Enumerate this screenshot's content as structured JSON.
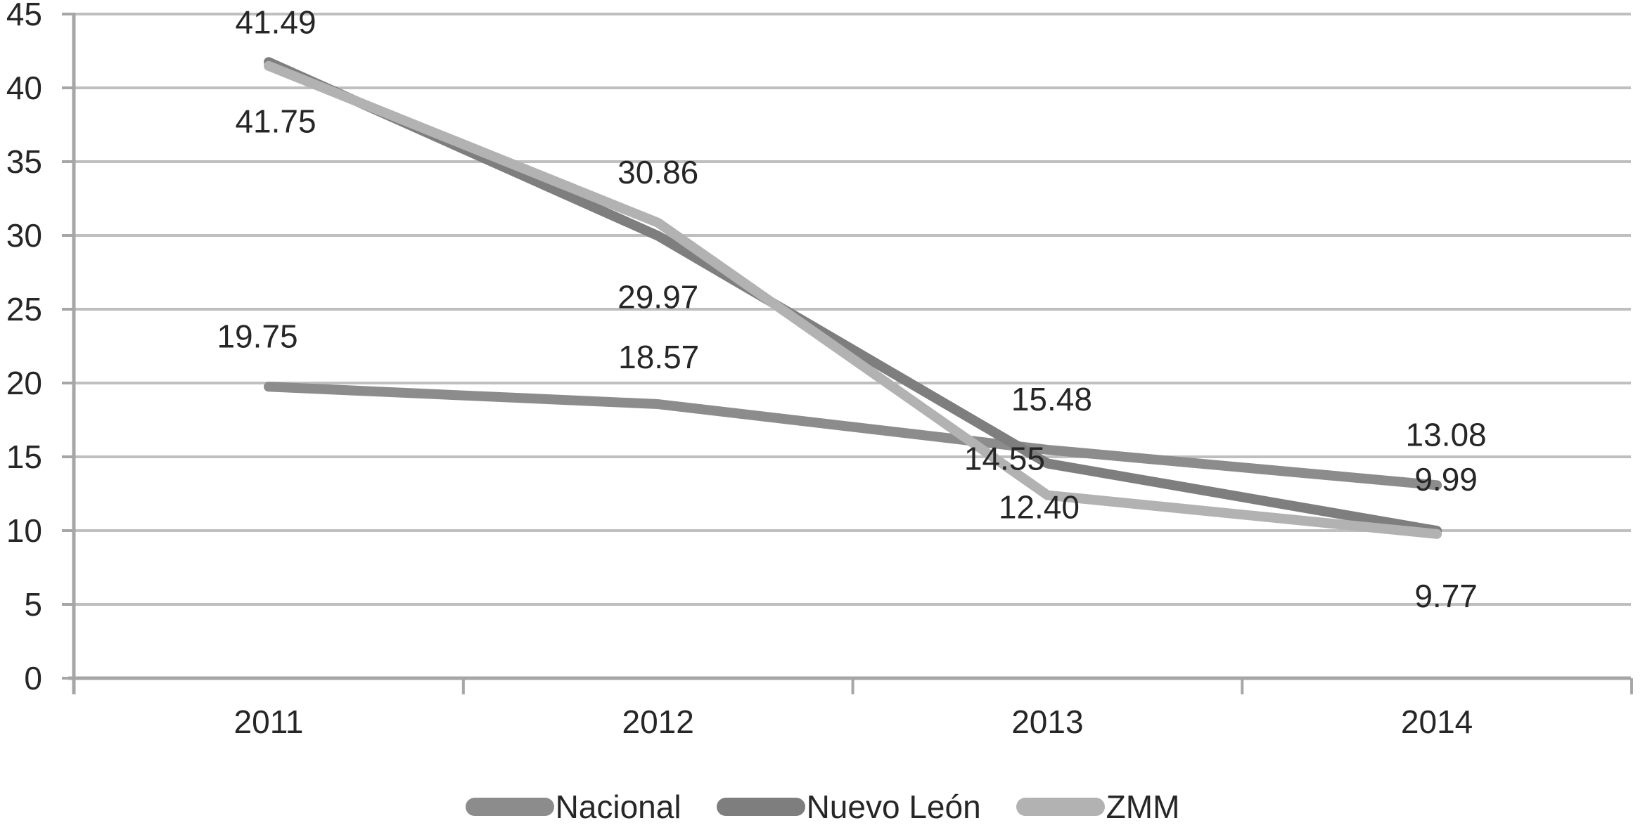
{
  "chart_data": {
    "type": "line",
    "x": [
      "2011",
      "2012",
      "2013",
      "2014"
    ],
    "series": [
      {
        "name": "Nacional",
        "values": [
          19.75,
          18.57,
          15.48,
          13.08
        ],
        "value_labels": [
          "19.75",
          "18.57",
          "15.48",
          "13.08"
        ],
        "color": "#8C8C8C",
        "label_offsets": [
          [
            -16,
            -72
          ],
          [
            1,
            -67
          ],
          [
            6,
            -72
          ],
          [
            13,
            -72
          ]
        ]
      },
      {
        "name": "Nuevo León",
        "values": [
          41.75,
          29.97,
          14.55,
          9.99
        ],
        "value_labels": [
          "41.75",
          "29.97",
          "14.55",
          "9.99"
        ],
        "color": "#7E7E7E",
        "label_offsets": [
          [
            10,
            84
          ],
          [
            0,
            87
          ],
          [
            -61,
            -7
          ],
          [
            13,
            -73
          ]
        ]
      },
      {
        "name": "ZMM",
        "values": [
          41.49,
          30.86,
          12.4,
          9.77
        ],
        "value_labels": [
          "41.49",
          "30.86",
          "12.40",
          "9.77"
        ],
        "color": "#B2B2B2",
        "label_offsets": [
          [
            10,
            -62
          ],
          [
            0,
            -72
          ],
          [
            -12,
            17
          ],
          [
            13,
            88
          ]
        ]
      }
    ],
    "title": "",
    "xlabel": "",
    "ylabel": "",
    "ylim": [
      0,
      45
    ],
    "ytick_step": 5,
    "yticks": [
      "0",
      "5",
      "10",
      "15",
      "20",
      "25",
      "30",
      "35",
      "40",
      "45"
    ],
    "grid": true,
    "legend_position": "bottom",
    "colors": {
      "gridline": "#BFBFBF",
      "axis": "#A6A6A6",
      "text": "#262626",
      "background": "#FFFFFF"
    }
  }
}
